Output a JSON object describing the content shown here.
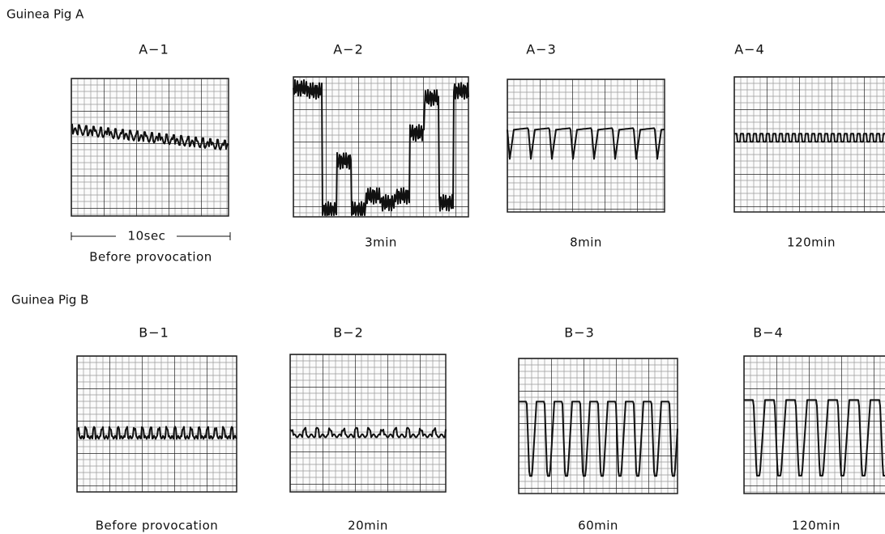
{
  "groups": [
    {
      "title": "Guinea Pig A",
      "panels": [
        {
          "label": "A−1",
          "scale_bar": "10sec",
          "caption": "Before provocation"
        },
        {
          "label": "A−2",
          "caption": "3min"
        },
        {
          "label": "A−3",
          "caption": "8min"
        },
        {
          "label": "A−4",
          "caption": "120min"
        }
      ]
    },
    {
      "title": "Guinea Pig B",
      "panels": [
        {
          "label": "B−1",
          "caption": "Before provocation"
        },
        {
          "label": "B−2",
          "caption": "20min"
        },
        {
          "label": "B−3",
          "caption": "60min"
        },
        {
          "label": "B−4",
          "caption": "120min"
        }
      ]
    }
  ]
}
